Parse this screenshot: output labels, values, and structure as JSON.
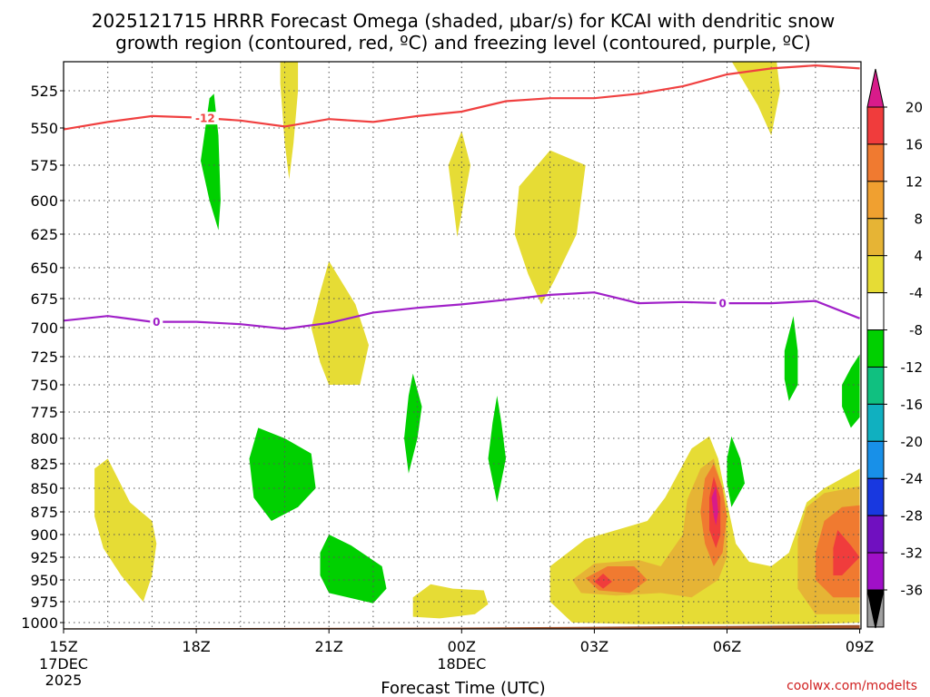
{
  "chart_data": {
    "type": "heatmap",
    "title_line1": "2025121715 HRRR Forecast Omega (shaded, μbar/s) for KCAI with dendritic snow",
    "title_line2": "growth region (contoured, red, ºC) and freezing level (contoured, purple, ºC)",
    "xlabel": "Forecast Time (UTC)",
    "credit": "coolwx.com/modelts",
    "x_ticks": [
      {
        "hour": 0,
        "label": "15Z",
        "sub1": "17DEC",
        "sub2": "2025"
      },
      {
        "hour": 3,
        "label": "18Z",
        "sub1": "",
        "sub2": ""
      },
      {
        "hour": 6,
        "label": "21Z",
        "sub1": "",
        "sub2": ""
      },
      {
        "hour": 9,
        "label": "00Z",
        "sub1": "18DEC",
        "sub2": ""
      },
      {
        "hour": 12,
        "label": "03Z",
        "sub1": "",
        "sub2": ""
      },
      {
        "hour": 15,
        "label": "06Z",
        "sub1": "",
        "sub2": ""
      },
      {
        "hour": 18,
        "label": "09Z",
        "sub1": "",
        "sub2": ""
      }
    ],
    "y_ticks": [
      "525",
      "550",
      "575",
      "600",
      "625",
      "650",
      "675",
      "700",
      "725",
      "750",
      "775",
      "800",
      "825",
      "850",
      "875",
      "900",
      "925",
      "950",
      "975",
      "1000"
    ],
    "y_values": [
      525,
      550,
      575,
      600,
      625,
      650,
      675,
      700,
      725,
      750,
      775,
      800,
      825,
      850,
      875,
      900,
      925,
      950,
      975,
      1000
    ],
    "xlim_hours": [
      0,
      18
    ],
    "ylim_hPa": [
      500,
      1010
    ],
    "colorbar": {
      "labels": [
        "20",
        "16",
        "12",
        "8",
        "4",
        "-4",
        "-8",
        "-12",
        "-16",
        "-20",
        "-24",
        "-28",
        "-32",
        "-36"
      ],
      "bands": [
        "#d81b8a",
        "#f03c3c",
        "#f07a30",
        "#f0a030",
        "#e6b435",
        "#e6dc35",
        "#ffffff",
        "#00d000",
        "#10c080",
        "#10b0c0",
        "#1890e8",
        "#1838e0",
        "#7010c0",
        "#a010c8",
        "#a0a0a0"
      ]
    },
    "series": [
      {
        "name": "-12",
        "color": "#f04040",
        "label_at_hour": 3.2,
        "points": [
          [
            0,
            551
          ],
          [
            1,
            546
          ],
          [
            2,
            542
          ],
          [
            3,
            543
          ],
          [
            4,
            545
          ],
          [
            5,
            549
          ],
          [
            6,
            544
          ],
          [
            7,
            546
          ],
          [
            8,
            542
          ],
          [
            9,
            539
          ],
          [
            10,
            532
          ],
          [
            11,
            530
          ],
          [
            12,
            530
          ],
          [
            13,
            527
          ],
          [
            14,
            522
          ],
          [
            15,
            514
          ],
          [
            16,
            510
          ],
          [
            17,
            508
          ],
          [
            18,
            510
          ]
        ]
      },
      {
        "name": "0",
        "color": "#a020c8",
        "label_at_hour": 2.1,
        "points": [
          [
            0,
            694
          ],
          [
            1,
            690
          ],
          [
            2,
            695
          ],
          [
            3,
            695
          ],
          [
            4,
            697
          ],
          [
            5,
            701
          ],
          [
            6,
            696
          ],
          [
            7,
            687
          ],
          [
            8,
            683
          ],
          [
            9,
            680
          ],
          [
            10,
            676
          ],
          [
            11,
            672
          ],
          [
            12,
            670
          ],
          [
            13,
            679
          ],
          [
            14,
            678
          ],
          [
            15,
            679
          ],
          [
            16,
            679
          ],
          [
            17,
            677
          ],
          [
            18,
            692
          ]
        ]
      }
    ],
    "zero_label_at_hour": 14.9,
    "omega_regions": [
      {
        "fill": "#e6dc35",
        "points": [
          [
            4.9,
            500
          ],
          [
            5.3,
            500
          ],
          [
            5.3,
            525
          ],
          [
            5.2,
            560
          ],
          [
            5.1,
            585
          ],
          [
            5.0,
            560
          ],
          [
            4.9,
            520
          ]
        ]
      },
      {
        "fill": "#e6dc35",
        "points": [
          [
            15.0,
            500
          ],
          [
            16.1,
            500
          ],
          [
            16.2,
            525
          ],
          [
            16.0,
            555
          ],
          [
            15.7,
            535
          ],
          [
            15.3,
            515
          ]
        ]
      },
      {
        "fill": "#e6dc35",
        "points": [
          [
            8.7,
            575
          ],
          [
            9.0,
            552
          ],
          [
            9.2,
            575
          ],
          [
            9.0,
            610
          ],
          [
            8.9,
            627
          ],
          [
            8.8,
            600
          ]
        ]
      },
      {
        "fill": "#e6dc35",
        "points": [
          [
            10.3,
            590
          ],
          [
            11.0,
            565
          ],
          [
            11.8,
            575
          ],
          [
            11.6,
            625
          ],
          [
            11.1,
            660
          ],
          [
            10.8,
            680
          ],
          [
            10.5,
            655
          ],
          [
            10.2,
            625
          ]
        ]
      },
      {
        "fill": "#e6dc35",
        "points": [
          [
            5.6,
            700
          ],
          [
            5.8,
            670
          ],
          [
            6.0,
            645
          ],
          [
            6.6,
            680
          ],
          [
            6.9,
            715
          ],
          [
            6.7,
            750
          ],
          [
            6.0,
            750
          ],
          [
            5.8,
            730
          ]
        ]
      },
      {
        "fill": "#e6dc35",
        "points": [
          [
            0.7,
            830
          ],
          [
            1.0,
            820
          ],
          [
            1.5,
            865
          ],
          [
            2.0,
            885
          ],
          [
            2.1,
            910
          ],
          [
            2.0,
            945
          ],
          [
            1.8,
            975
          ],
          [
            1.3,
            945
          ],
          [
            0.9,
            915
          ],
          [
            0.7,
            880
          ]
        ]
      },
      {
        "fill": "#e6dc35",
        "points": [
          [
            8.8,
            960
          ],
          [
            9.5,
            962
          ],
          [
            9.6,
            978
          ],
          [
            9.3,
            990
          ],
          [
            8.5,
            995
          ],
          [
            7.9,
            993
          ],
          [
            7.9,
            970
          ],
          [
            8.3,
            955
          ]
        ]
      },
      {
        "fill": "#e6dc35",
        "points": [
          [
            11.0,
            935
          ],
          [
            11.8,
            905
          ],
          [
            12.5,
            895
          ],
          [
            13.2,
            885
          ],
          [
            13.6,
            860
          ],
          [
            14.2,
            810
          ],
          [
            14.6,
            798
          ],
          [
            14.8,
            820
          ],
          [
            15.0,
            865
          ],
          [
            15.2,
            910
          ],
          [
            15.5,
            930
          ],
          [
            16.0,
            935
          ],
          [
            16.4,
            920
          ],
          [
            16.8,
            865
          ],
          [
            17.2,
            850
          ],
          [
            18.0,
            830
          ],
          [
            18.0,
            1000
          ],
          [
            17.0,
            1002
          ],
          [
            15.0,
            1002
          ],
          [
            13.0,
            1002
          ],
          [
            11.5,
            1000
          ],
          [
            11.0,
            975
          ]
        ]
      },
      {
        "fill": "#e6b435",
        "points": [
          [
            11.5,
            950
          ],
          [
            12.0,
            932
          ],
          [
            13.0,
            928
          ],
          [
            13.5,
            935
          ],
          [
            14.0,
            900
          ],
          [
            14.1,
            862
          ],
          [
            14.4,
            830
          ],
          [
            14.7,
            820
          ],
          [
            14.9,
            850
          ],
          [
            15.0,
            900
          ],
          [
            15.0,
            925
          ],
          [
            14.8,
            950
          ],
          [
            14.2,
            970
          ],
          [
            13.5,
            965
          ],
          [
            12.5,
            968
          ],
          [
            11.7,
            965
          ]
        ]
      },
      {
        "fill": "#e6b435",
        "points": [
          [
            16.6,
            905
          ],
          [
            16.8,
            870
          ],
          [
            17.2,
            855
          ],
          [
            18.0,
            848
          ],
          [
            18.0,
            990
          ],
          [
            17.0,
            990
          ],
          [
            16.6,
            960
          ]
        ]
      },
      {
        "fill": "#f07a30",
        "points": [
          [
            11.8,
            948
          ],
          [
            12.3,
            935
          ],
          [
            12.9,
            935
          ],
          [
            13.2,
            950
          ],
          [
            12.8,
            965
          ],
          [
            12.1,
            962
          ]
        ]
      },
      {
        "fill": "#f07a30",
        "points": [
          [
            14.4,
            875
          ],
          [
            14.5,
            840
          ],
          [
            14.7,
            825
          ],
          [
            14.9,
            850
          ],
          [
            15.0,
            880
          ],
          [
            14.9,
            920
          ],
          [
            14.7,
            935
          ],
          [
            14.5,
            910
          ]
        ]
      },
      {
        "fill": "#f07a30",
        "points": [
          [
            17.0,
            920
          ],
          [
            17.2,
            885
          ],
          [
            17.6,
            870
          ],
          [
            18.0,
            868
          ],
          [
            18.0,
            970
          ],
          [
            17.4,
            970
          ],
          [
            17.0,
            950
          ]
        ]
      },
      {
        "fill": "#f03c3c",
        "points": [
          [
            12.0,
            952
          ],
          [
            12.2,
            943
          ],
          [
            12.4,
            952
          ],
          [
            12.2,
            960
          ]
        ]
      },
      {
        "fill": "#f03c3c",
        "points": [
          [
            14.6,
            860
          ],
          [
            14.7,
            838
          ],
          [
            14.85,
            860
          ],
          [
            14.85,
            900
          ],
          [
            14.75,
            915
          ],
          [
            14.6,
            895
          ]
        ]
      },
      {
        "fill": "#f03c3c",
        "points": [
          [
            17.4,
            915
          ],
          [
            17.5,
            895
          ],
          [
            17.8,
            912
          ],
          [
            18.0,
            925
          ],
          [
            17.6,
            945
          ],
          [
            17.4,
            945
          ]
        ]
      },
      {
        "fill": "#d81b8a",
        "points": [
          [
            14.65,
            860
          ],
          [
            14.75,
            848
          ],
          [
            14.8,
            875
          ],
          [
            14.75,
            890
          ],
          [
            14.7,
            880
          ]
        ]
      },
      {
        "fill": "#00d000",
        "points": [
          [
            3.3,
            530
          ],
          [
            3.4,
            527
          ],
          [
            3.5,
            555
          ],
          [
            3.55,
            600
          ],
          [
            3.5,
            622
          ],
          [
            3.3,
            600
          ],
          [
            3.1,
            572
          ]
        ]
      },
      {
        "fill": "#00d000",
        "points": [
          [
            4.4,
            790
          ],
          [
            5.0,
            800
          ],
          [
            5.6,
            815
          ],
          [
            5.7,
            850
          ],
          [
            5.3,
            870
          ],
          [
            4.7,
            885
          ],
          [
            4.3,
            860
          ],
          [
            4.2,
            820
          ]
        ]
      },
      {
        "fill": "#00d000",
        "points": [
          [
            5.8,
            920
          ],
          [
            6.0,
            900
          ],
          [
            6.5,
            912
          ],
          [
            7.2,
            935
          ],
          [
            7.3,
            960
          ],
          [
            7.0,
            977
          ],
          [
            6.0,
            965
          ],
          [
            5.8,
            945
          ]
        ]
      },
      {
        "fill": "#00d000",
        "points": [
          [
            7.8,
            760
          ],
          [
            7.9,
            740
          ],
          [
            8.1,
            770
          ],
          [
            8.0,
            800
          ],
          [
            7.8,
            835
          ],
          [
            7.7,
            800
          ]
        ]
      },
      {
        "fill": "#00d000",
        "points": [
          [
            9.7,
            785
          ],
          [
            9.8,
            760
          ],
          [
            9.9,
            785
          ],
          [
            10.0,
            820
          ],
          [
            9.8,
            865
          ],
          [
            9.6,
            820
          ]
        ]
      },
      {
        "fill": "#00d000",
        "points": [
          [
            15.0,
            820
          ],
          [
            15.1,
            798
          ],
          [
            15.3,
            820
          ],
          [
            15.4,
            845
          ],
          [
            15.1,
            870
          ],
          [
            15.0,
            845
          ]
        ]
      },
      {
        "fill": "#00d000",
        "points": [
          [
            16.3,
            720
          ],
          [
            16.5,
            690
          ],
          [
            16.6,
            720
          ],
          [
            16.6,
            750
          ],
          [
            16.4,
            765
          ],
          [
            16.3,
            745
          ]
        ]
      },
      {
        "fill": "#00d000",
        "points": [
          [
            17.6,
            750
          ],
          [
            17.8,
            735
          ],
          [
            18.0,
            723
          ],
          [
            18.0,
            780
          ],
          [
            17.8,
            790
          ],
          [
            17.6,
            770
          ]
        ]
      }
    ],
    "ground": {
      "fill": "#a05028",
      "points": [
        [
          0,
          1007
        ],
        [
          9,
          1006
        ],
        [
          12,
          1005
        ],
        [
          15,
          1004
        ],
        [
          18,
          1003
        ],
        [
          18,
          1012
        ],
        [
          0,
          1012
        ]
      ]
    }
  }
}
